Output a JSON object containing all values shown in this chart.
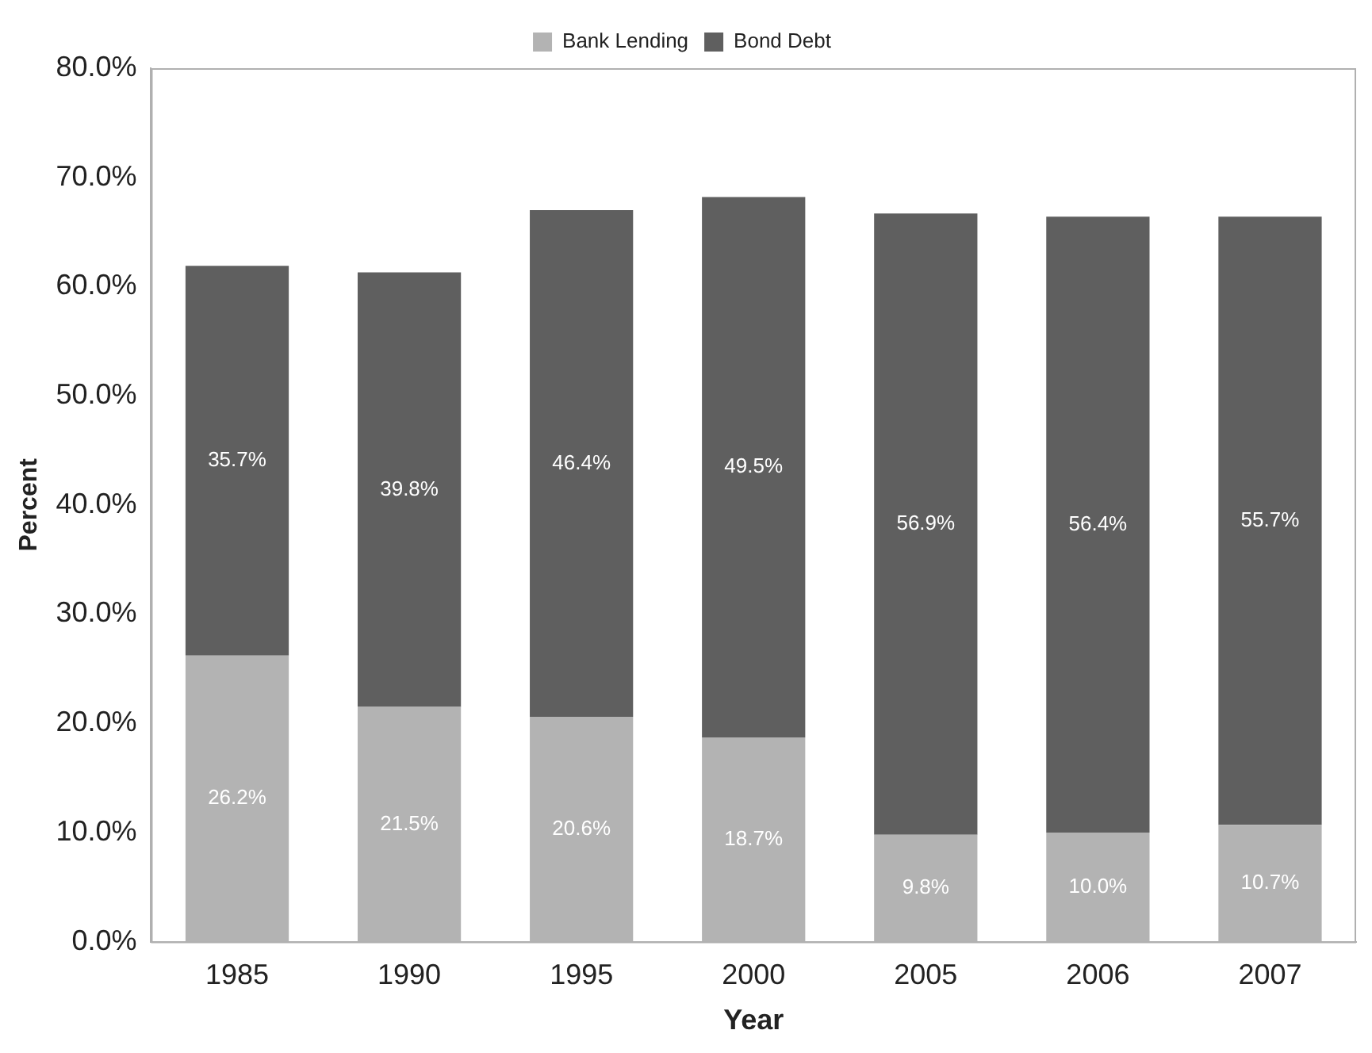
{
  "chart_data": {
    "type": "bar",
    "stacked": true,
    "xlabel": "Year",
    "ylabel": "Percent",
    "categories": [
      "1985",
      "1990",
      "1995",
      "2000",
      "2005",
      "2006",
      "2007"
    ],
    "series": [
      {
        "name": "Bank Lending",
        "color": "#b3b3b3",
        "values": [
          26.2,
          21.5,
          20.6,
          18.7,
          9.8,
          10.0,
          10.7
        ],
        "value_labels": [
          "26.2%",
          "21.5%",
          "20.6%",
          "18.7%",
          "9.8%",
          "10.0%",
          "10.7%"
        ]
      },
      {
        "name": "Bond Debt",
        "color": "#5f5f5f",
        "values": [
          35.7,
          39.8,
          46.4,
          49.5,
          56.9,
          56.4,
          55.7
        ],
        "value_labels": [
          "35.7%",
          "39.8%",
          "46.4%",
          "49.5%",
          "56.9%",
          "56.4%",
          "55.7%"
        ]
      }
    ],
    "ylim": [
      0,
      80
    ],
    "yticks": [
      {
        "value": 0,
        "label": "0.0%"
      },
      {
        "value": 10,
        "label": "10.0%"
      },
      {
        "value": 20,
        "label": "20.0%"
      },
      {
        "value": 30,
        "label": "30.0%"
      },
      {
        "value": 40,
        "label": "40.0%"
      },
      {
        "value": 50,
        "label": "50.0%"
      },
      {
        "value": 60,
        "label": "60.0%"
      },
      {
        "value": 70,
        "label": "70.0%"
      },
      {
        "value": 80,
        "label": "80.0%"
      }
    ],
    "grid": false,
    "legend": "top"
  }
}
